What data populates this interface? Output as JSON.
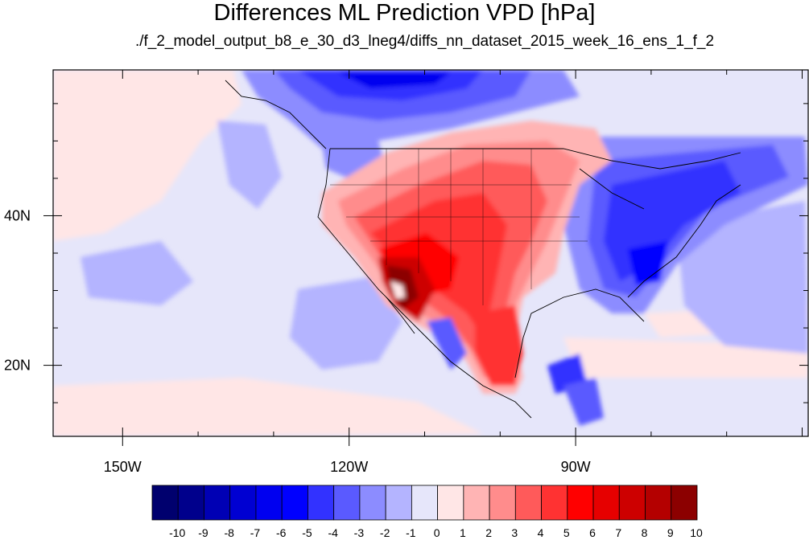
{
  "title": "Differences ML Prediction VPD [hPa]",
  "subtitle": "./f_2_model_output_b8_e_30_d3_lneg4/diffs_nn_dataset_2015_week_16_ens_1_f_2",
  "map": {
    "projection": "cylindrical-equidistant",
    "lon_range": [
      -159.2,
      -59.2
    ],
    "lat_range": [
      10.5,
      59.5
    ],
    "lon_ticks": [
      {
        "value": -150,
        "label": "150W"
      },
      {
        "value": -120,
        "label": "120W"
      },
      {
        "value": -90,
        "label": "90W"
      }
    ],
    "lat_ticks": [
      {
        "value": 40,
        "label": "40N"
      },
      {
        "value": 20,
        "label": "20N"
      }
    ]
  },
  "colorbar": {
    "levels": [
      -10,
      -9,
      -8,
      -7,
      -6,
      -5,
      -4,
      -3,
      -2,
      -1,
      0,
      1,
      2,
      3,
      4,
      5,
      6,
      7,
      8,
      9,
      10
    ],
    "labels": [
      "-10",
      "-9",
      "-8",
      "-7",
      "-6",
      "-5",
      "-4",
      "-3",
      "-2",
      "-1",
      "0",
      "1",
      "2",
      "3",
      "4",
      "5",
      "6",
      "7",
      "8",
      "9",
      "10"
    ],
    "colors": [
      "#00006e",
      "#00008c",
      "#0000b4",
      "#0000d2",
      "#0000f0",
      "#0000ff",
      "#3232ff",
      "#5a5aff",
      "#8c8cff",
      "#b4b4ff",
      "#e6e6fa",
      "#ffe6e6",
      "#ffb4b4",
      "#ff8c8c",
      "#ff5a5a",
      "#ff3232",
      "#ff0000",
      "#e60000",
      "#cd0000",
      "#b40000",
      "#8c0000"
    ]
  }
}
